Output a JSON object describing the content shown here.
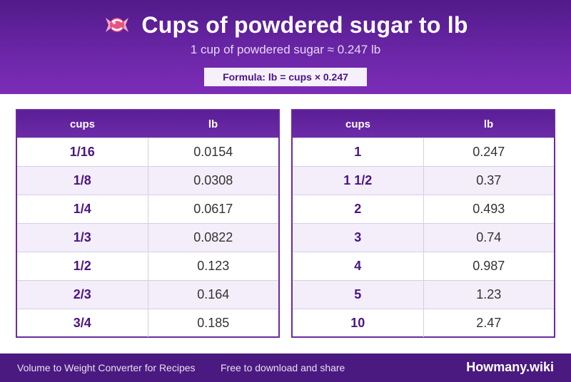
{
  "header": {
    "icon": "candy-icon",
    "title": "Cups of powdered sugar to lb",
    "subtitle": "1 cup of powdered sugar ≈ 0.247 lb",
    "formula": "Formula: lb = cups × 0.247"
  },
  "tables": [
    {
      "columns": [
        "cups",
        "lb"
      ],
      "rows": [
        [
          "1/16",
          "0.0154"
        ],
        [
          "1/8",
          "0.0308"
        ],
        [
          "1/4",
          "0.0617"
        ],
        [
          "1/3",
          "0.0822"
        ],
        [
          "1/2",
          "0.123"
        ],
        [
          "2/3",
          "0.164"
        ],
        [
          "3/4",
          "0.185"
        ]
      ]
    },
    {
      "columns": [
        "cups",
        "lb"
      ],
      "rows": [
        [
          "1",
          "0.247"
        ],
        [
          "1 1/2",
          "0.37"
        ],
        [
          "2",
          "0.493"
        ],
        [
          "3",
          "0.74"
        ],
        [
          "4",
          "0.987"
        ],
        [
          "5",
          "1.23"
        ],
        [
          "10",
          "2.47"
        ]
      ]
    }
  ],
  "footer": {
    "left": "Volume to Weight Converter for Recipes",
    "middle": "Free to download and share",
    "brand": "Howmany.wiki"
  },
  "colors": {
    "header": "#6a26a6",
    "footer": "#4a1a80",
    "accent_text": "#4b1580",
    "alt_row": "#f3eefa"
  }
}
